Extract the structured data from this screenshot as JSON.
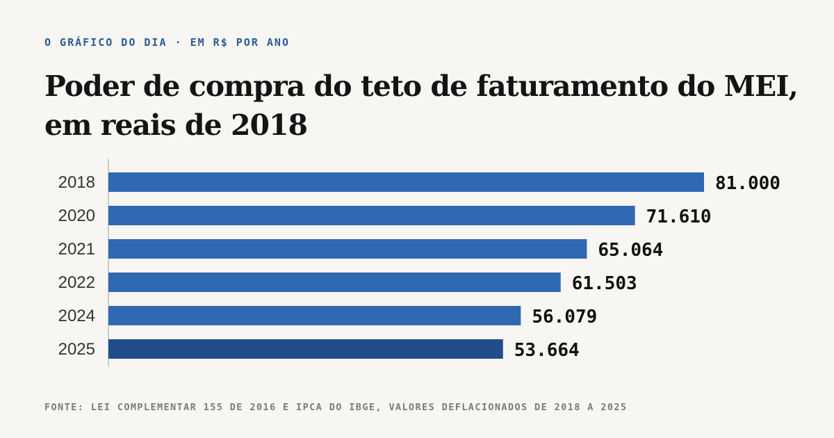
{
  "kicker": "O GRÁFICO DO DIA · EM R$ POR ANO",
  "title_line1": "Poder de compra do teto de faturamento do MEI,",
  "title_line2": "em reais de 2018",
  "source": "FONTE: LEI COMPLEMENTAR 155 DE 2016 E IPCA DO IBGE, VALORES DEFLACIONADOS DE 2018 A 2025",
  "colors": {
    "bar": "#2f68b3",
    "bar_highlight": "#1f4d8c",
    "axis": "#bcbcbc",
    "label": "#333333",
    "value": "#111111"
  },
  "chart_data": {
    "type": "bar",
    "orientation": "horizontal",
    "title": "Poder de compra do teto de faturamento do MEI, em reais de 2018",
    "categories": [
      "2018",
      "2020",
      "2021",
      "2022",
      "2024",
      "2025"
    ],
    "values": [
      81000,
      71610,
      65064,
      61503,
      56079,
      53664
    ],
    "value_labels": [
      "81.000",
      "71.610",
      "65.064",
      "61.503",
      "56.079",
      "53.664"
    ],
    "highlight_category": "2025",
    "xlim": [
      0,
      81000
    ],
    "grid": false,
    "legend": "none"
  }
}
